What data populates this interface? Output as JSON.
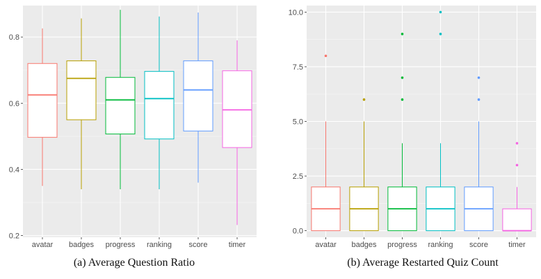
{
  "captions": [
    "(a) Average Question Ratio",
    "(b) Average Restarted Quiz Count"
  ],
  "chart_data": [
    {
      "type": "boxplot",
      "title": "",
      "xlabel": "",
      "ylabel": "",
      "categories": [
        "avatar",
        "badges",
        "progress",
        "ranking",
        "score",
        "timer"
      ],
      "colors": [
        "#f8766d",
        "#b79f00",
        "#00ba38",
        "#00bfc4",
        "#619cff",
        "#f564e3"
      ],
      "ylim": [
        0.195,
        0.895
      ],
      "yticks": [
        0.2,
        0.4,
        0.6,
        0.8
      ],
      "ytick_labels": [
        "0.2",
        "0.4",
        "0.6",
        "0.8"
      ],
      "grid": true,
      "legend": "none",
      "boxes": [
        {
          "min": 0.35,
          "q1": 0.497,
          "median": 0.625,
          "q3": 0.72,
          "max": 0.826,
          "outliers": []
        },
        {
          "min": 0.34,
          "q1": 0.55,
          "median": 0.675,
          "q3": 0.728,
          "max": 0.856,
          "outliers": []
        },
        {
          "min": 0.34,
          "q1": 0.507,
          "median": 0.61,
          "q3": 0.678,
          "max": 0.882,
          "outliers": []
        },
        {
          "min": 0.34,
          "q1": 0.492,
          "median": 0.614,
          "q3": 0.696,
          "max": 0.862,
          "outliers": []
        },
        {
          "min": 0.36,
          "q1": 0.516,
          "median": 0.64,
          "q3": 0.728,
          "max": 0.874,
          "outliers": []
        },
        {
          "min": 0.232,
          "q1": 0.466,
          "median": 0.58,
          "q3": 0.698,
          "max": 0.79,
          "outliers": []
        }
      ]
    },
    {
      "type": "boxplot",
      "title": "",
      "xlabel": "",
      "ylabel": "",
      "categories": [
        "avatar",
        "badges",
        "progress",
        "ranking",
        "score",
        "timer"
      ],
      "colors": [
        "#f8766d",
        "#b79f00",
        "#00ba38",
        "#00bfc4",
        "#619cff",
        "#f564e3"
      ],
      "ylim": [
        -0.3,
        10.3
      ],
      "yticks": [
        0,
        2.5,
        5,
        7.5,
        10
      ],
      "ytick_labels": [
        "0.0",
        "2.5",
        "5.0",
        "7.5",
        "10.0"
      ],
      "grid": true,
      "legend": "none",
      "boxes": [
        {
          "min": 0,
          "q1": 0,
          "median": 1,
          "q3": 2,
          "max": 5,
          "outliers": [
            8
          ]
        },
        {
          "min": 0,
          "q1": 0,
          "median": 1,
          "q3": 2,
          "max": 5,
          "outliers": [
            6
          ]
        },
        {
          "min": 0,
          "q1": 0,
          "median": 1,
          "q3": 2,
          "max": 4,
          "outliers": [
            6,
            7,
            9
          ]
        },
        {
          "min": 0,
          "q1": 0,
          "median": 1,
          "q3": 2,
          "max": 4,
          "outliers": [
            9,
            10
          ]
        },
        {
          "min": 0,
          "q1": 0,
          "median": 1,
          "q3": 2,
          "max": 5,
          "outliers": [
            6,
            7
          ]
        },
        {
          "min": 0,
          "q1": 0,
          "median": 0,
          "q3": 1,
          "max": 2,
          "outliers": [
            3,
            4
          ]
        }
      ]
    }
  ]
}
